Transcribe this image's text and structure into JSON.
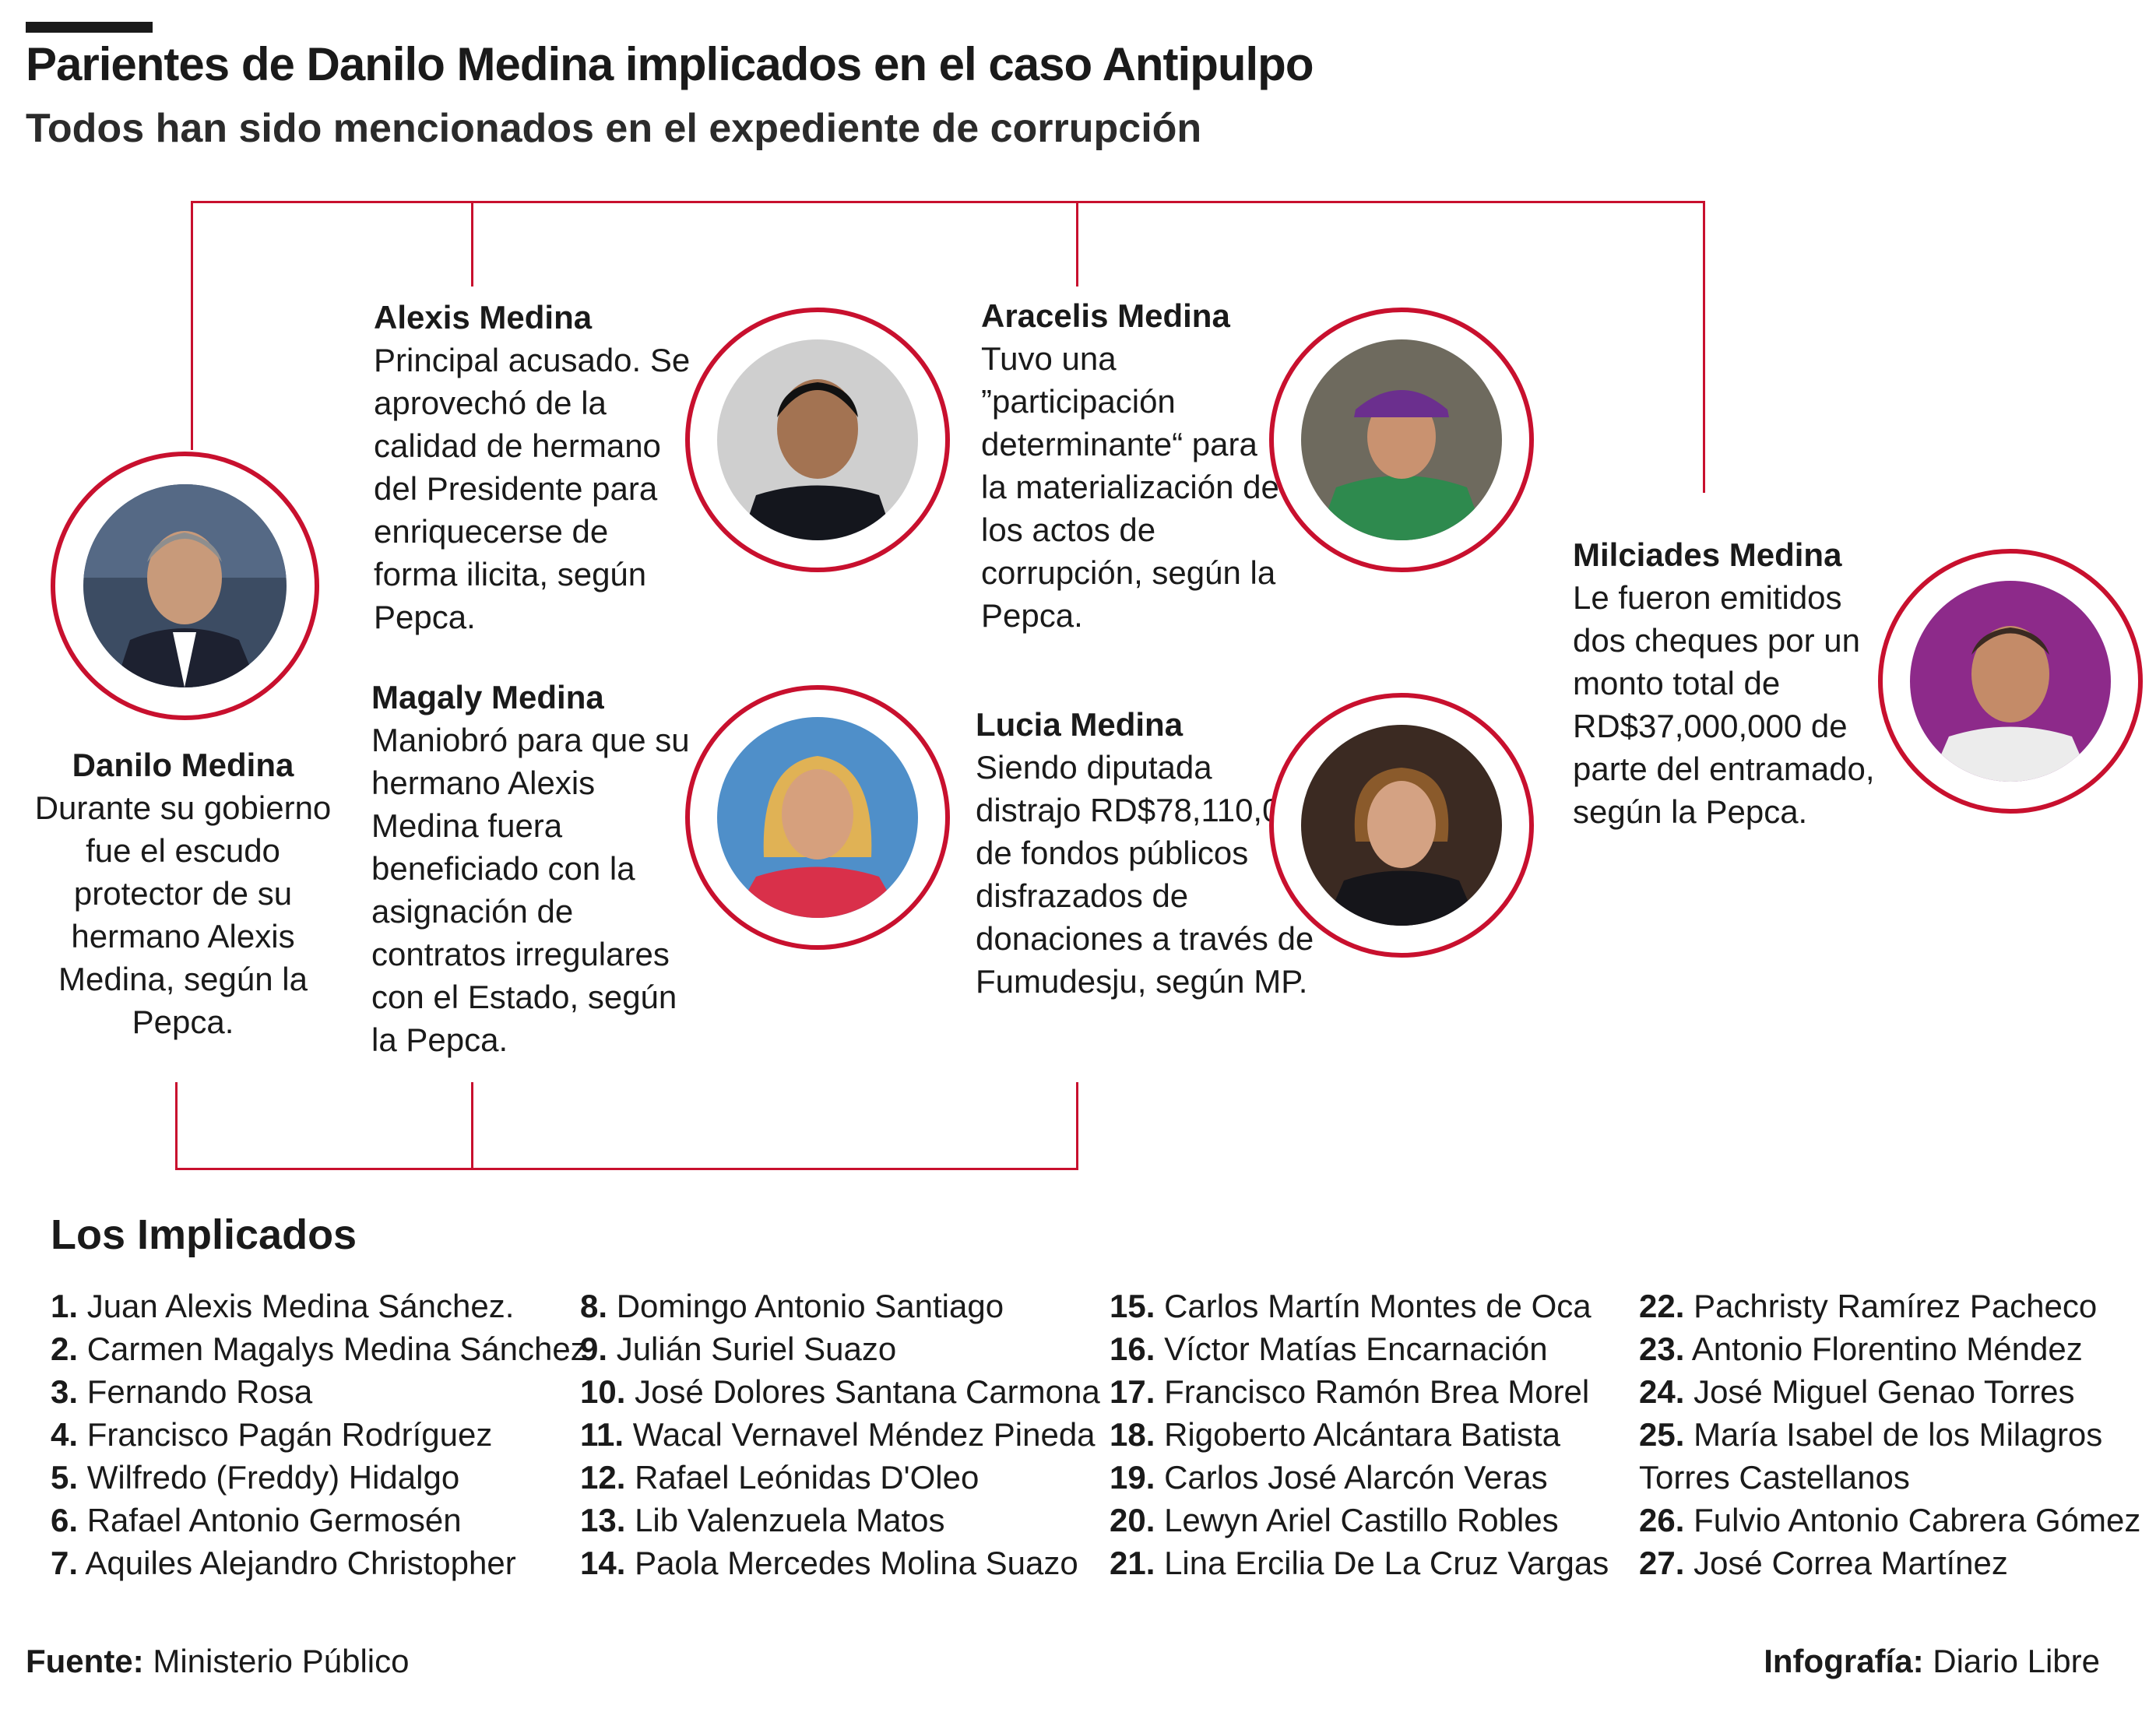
{
  "header": {
    "title": "Parientes de Danilo Medina implicados en el caso Antipulpo",
    "subtitle": "Todos han sido mencionados en el expediente de corrupción"
  },
  "people": {
    "danilo": {
      "name": "Danilo Medina",
      "text": "Durante su gobierno fue el escudo protector de su hermano Alexis Medina, según la Pepca."
    },
    "alexis": {
      "name": "Alexis Medina",
      "text": "Principal acusado. Se aprovechó de la calidad de hermano del Presidente para enriquecerse de forma ilicita, según Pepca."
    },
    "magaly": {
      "name": "Magaly Medina",
      "text": "Maniobró para que su hermano Alexis Medina fuera beneficiado con la asignación de contratos irregulares con el Estado, según la Pepca."
    },
    "aracelis": {
      "name": "Aracelis Medina",
      "text": "Tuvo una ”participación determinante“ para la materialización de los actos de corrupción, según la Pepca."
    },
    "lucia": {
      "name": "Lucia Medina",
      "text": "Siendo diputada distrajo RD$78,110,000 de fondos públicos disfrazados de donaciones a través de Fumudesju, según MP."
    },
    "milciades": {
      "name": "Milciades Medina",
      "text": "Le fueron emitidos dos cheques por un monto total de RD$37,000,000 de parte del entramado, según la Pepca."
    }
  },
  "implicados": {
    "title": "Los Implicados",
    "items": [
      {
        "n": "1.",
        "name": "Juan Alexis Medina Sánchez."
      },
      {
        "n": "2.",
        "name": "Carmen Magalys Medina Sánchez"
      },
      {
        "n": "3.",
        "name": "Fernando Rosa"
      },
      {
        "n": "4.",
        "name": "Francisco Pagán Rodríguez"
      },
      {
        "n": "5.",
        "name": "Wilfredo (Freddy) Hidalgo"
      },
      {
        "n": "6.",
        "name": "Rafael Antonio Germosén"
      },
      {
        "n": "7.",
        "name": "Aquiles Alejandro Christopher"
      },
      {
        "n": "8.",
        "name": "Domingo Antonio Santiago"
      },
      {
        "n": "9.",
        "name": "Julián Suriel Suazo"
      },
      {
        "n": "10.",
        "name": "José Dolores Santana Carmona"
      },
      {
        "n": "11.",
        "name": "Wacal Vernavel Méndez Pineda"
      },
      {
        "n": "12.",
        "name": "Rafael Leónidas D'Oleo"
      },
      {
        "n": "13.",
        "name": "Lib Valenzuela Matos"
      },
      {
        "n": "14.",
        "name": "Paola Mercedes Molina Suazo"
      },
      {
        "n": "15.",
        "name": "Carlos Martín Montes de Oca"
      },
      {
        "n": "16.",
        "name": "Víctor Matías Encarnación"
      },
      {
        "n": "17.",
        "name": "Francisco Ramón Brea Morel"
      },
      {
        "n": "18.",
        "name": "Rigoberto Alcántara Batista"
      },
      {
        "n": "19.",
        "name": "Carlos José Alarcón Veras"
      },
      {
        "n": "20.",
        "name": "Lewyn Ariel Castillo Robles"
      },
      {
        "n": "21.",
        "name": "Lina Ercilia De La Cruz Vargas"
      },
      {
        "n": "22.",
        "name": "Pachristy Ramírez Pacheco"
      },
      {
        "n": "23.",
        "name": "Antonio Florentino Méndez"
      },
      {
        "n": "24.",
        "name": "José Miguel Genao Torres"
      },
      {
        "n": "25.",
        "name": "María Isabel de los Milagros",
        "cont": "Torres Castellanos"
      },
      {
        "n": "26.",
        "name": "Fulvio Antonio Cabrera Gómez"
      },
      {
        "n": "27.",
        "name": "José Correa Martínez"
      }
    ]
  },
  "footer": {
    "source_label": "Fuente:",
    "source": "Ministerio Público",
    "credit_label": "Infografía:",
    "credit": "Diario Libre"
  },
  "colors": {
    "accent": "#c8102e",
    "text": "#1a1a1a"
  }
}
